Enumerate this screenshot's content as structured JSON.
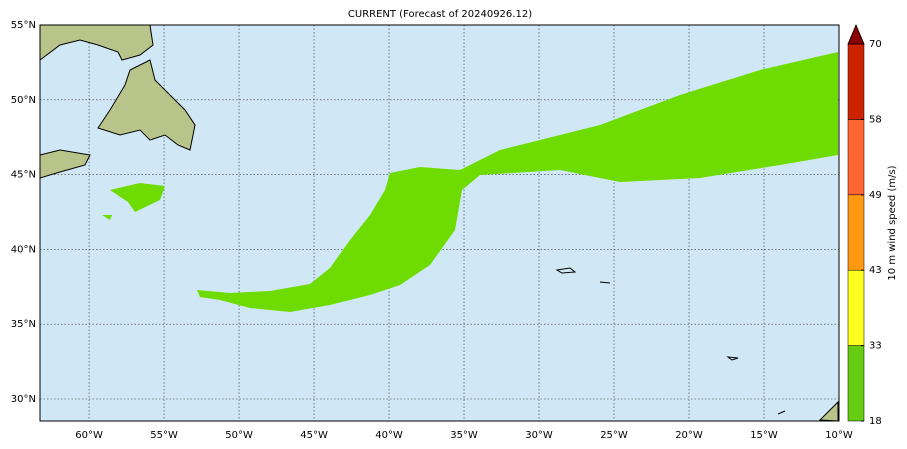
{
  "map": {
    "title": "CURRENT (Forecast of 20240926.12)",
    "xlim": [
      -63.27,
      -10
    ],
    "ylim": [
      28.53,
      55
    ],
    "xticks": [
      {
        "value": -60,
        "label": "60°W"
      },
      {
        "value": -55,
        "label": "55°W"
      },
      {
        "value": -50,
        "label": "50°W"
      },
      {
        "value": -45,
        "label": "45°W"
      },
      {
        "value": -40,
        "label": "40°W"
      },
      {
        "value": -35,
        "label": "35°W"
      },
      {
        "value": -30,
        "label": "30°W"
      },
      {
        "value": -25,
        "label": "25°W"
      },
      {
        "value": -20,
        "label": "20°W"
      },
      {
        "value": -15,
        "label": "15°W"
      },
      {
        "value": -10,
        "label": "10°W"
      }
    ],
    "yticks": [
      {
        "value": 30,
        "label": "30°N"
      },
      {
        "value": 35,
        "label": "35°N"
      },
      {
        "value": 40,
        "label": "40°N"
      },
      {
        "value": 45,
        "label": "45°N"
      },
      {
        "value": 50,
        "label": "50°N"
      },
      {
        "value": 55,
        "label": "55°N"
      }
    ],
    "grid": true,
    "colorbar": {
      "label": "10 m wind speed (m/s)",
      "ticks": [
        18,
        33,
        43,
        49,
        58,
        70
      ],
      "colors": [
        "#66cc11",
        "#ffff22",
        "#ff9911",
        "#ff6633",
        "#cc2200"
      ],
      "extend_color": "#880000"
    }
  }
}
